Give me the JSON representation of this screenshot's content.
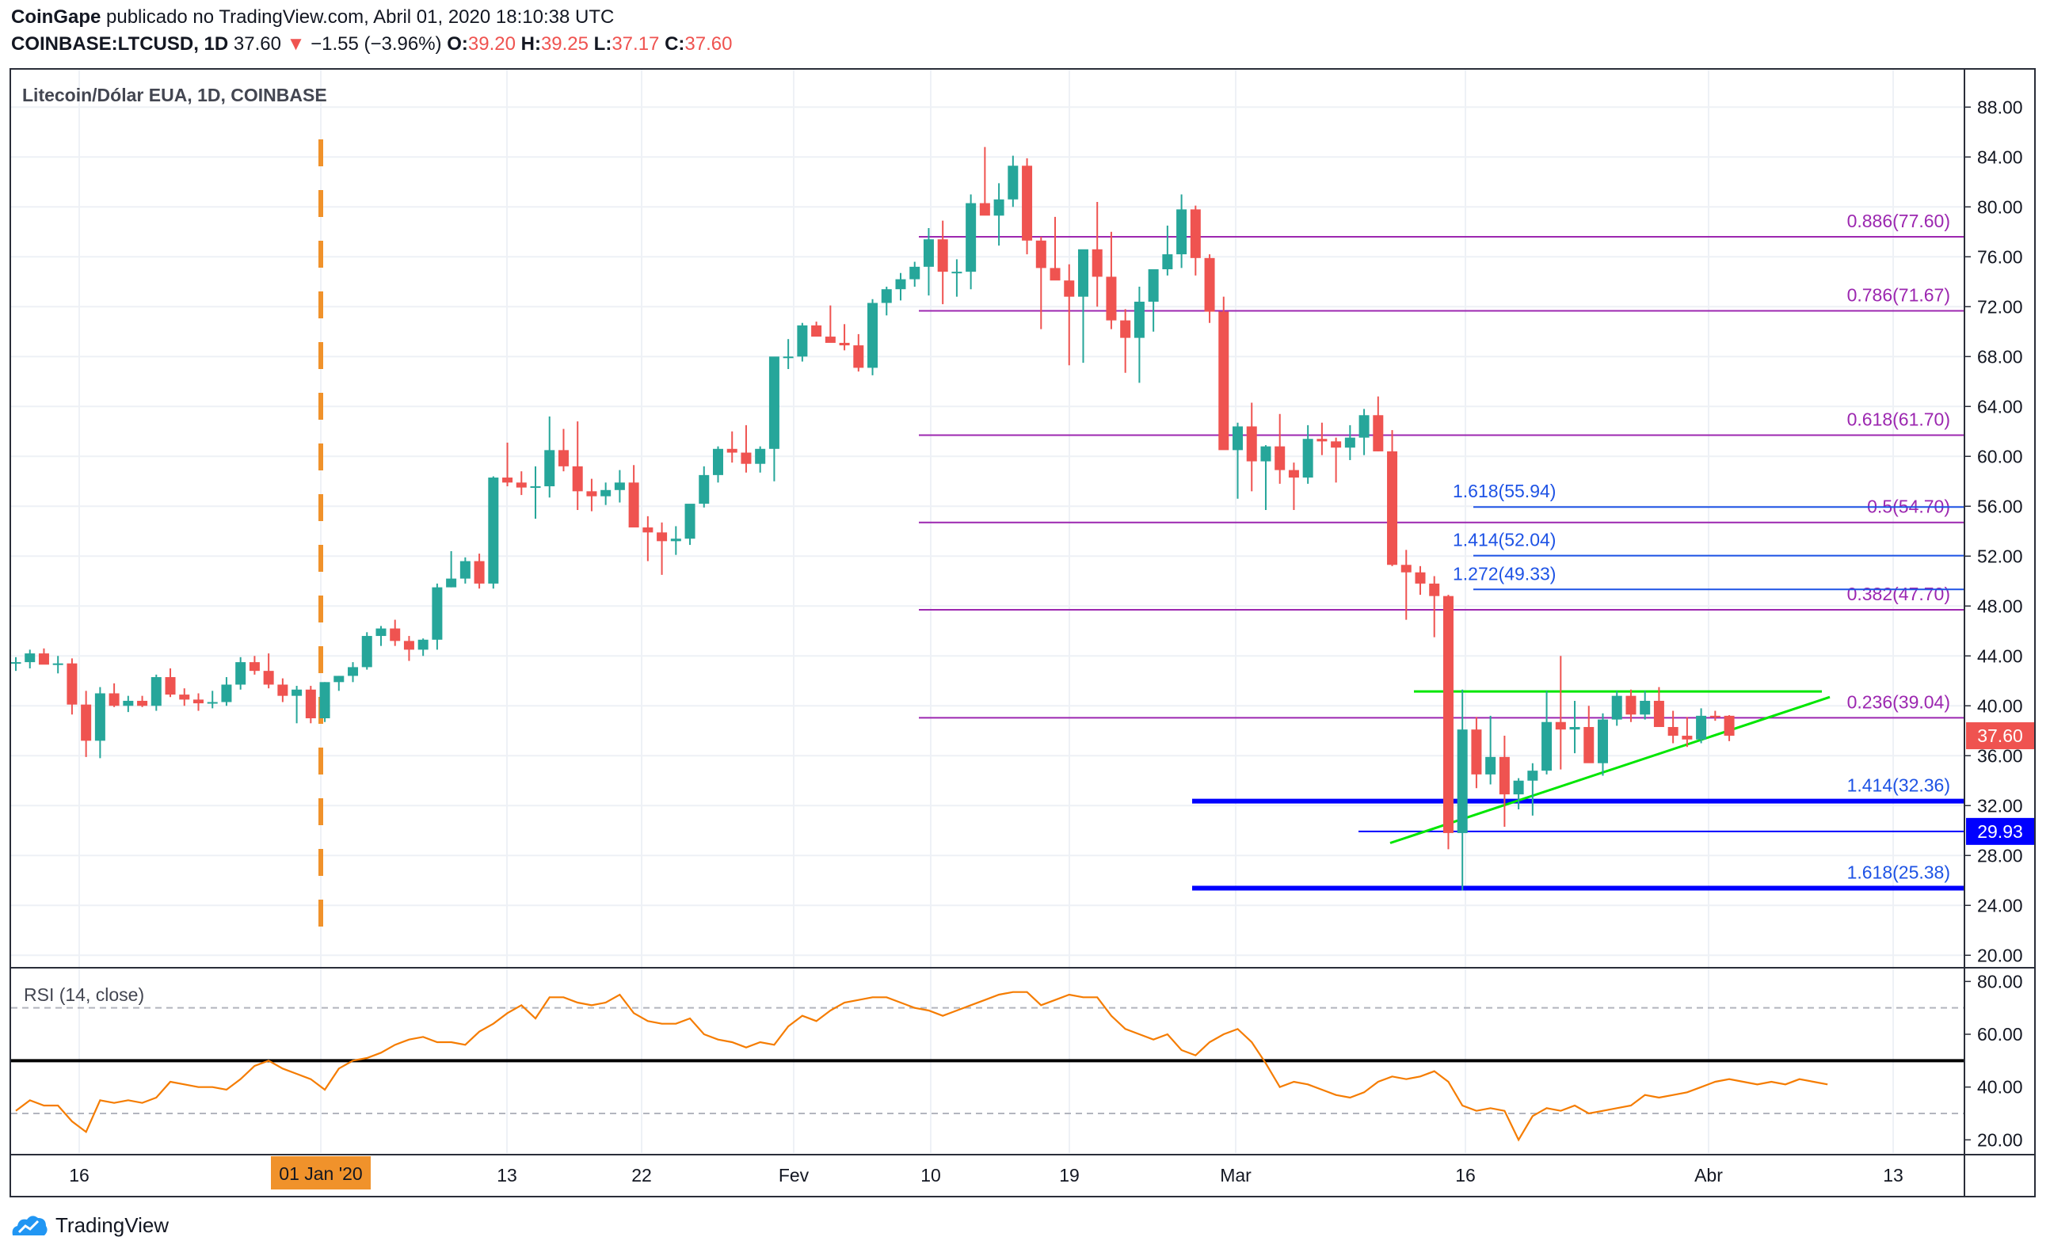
{
  "header": {
    "line1_brand": "CoinGape",
    "line1_rest": " publicado no TradingView.com, Abril 01, 2020 18:10:38 UTC",
    "symbol": "COINBASE:LTCUSD, 1D",
    "last": "37.60",
    "arrow": "▼",
    "change": "−1.55 (−3.96%)",
    "o_label": "O:",
    "o_val": "39.20",
    "h_label": "H:",
    "h_val": "39.25",
    "l_label": "L:",
    "l_val": "37.17",
    "c_label": "C:",
    "c_val": "37.60"
  },
  "footer": {
    "brand": "TradingView"
  },
  "colors": {
    "up": "#26a69a",
    "down": "#ef5350",
    "fib": "#9c27b0",
    "ext": "#1e53e5",
    "support": "#0000ff",
    "trend": "#00e600",
    "rsi": "#f57c00",
    "event": "#f0922b"
  },
  "chart_data": [
    {
      "type": "candlestick",
      "title": "Litecoin/Dólar EUA, 1D, COINBASE",
      "ylim": [
        19,
        91
      ],
      "y_ticks": [
        "88.00",
        "84.00",
        "80.00",
        "76.00",
        "72.00",
        "68.00",
        "64.00",
        "60.00",
        "56.00",
        "52.00",
        "48.00",
        "44.00",
        "40.00",
        "36.00",
        "32.00",
        "28.00",
        "24.00",
        "20.00"
      ],
      "x_ticks": [
        "16",
        "01 Jan '20",
        "13",
        "22",
        "Fev",
        "10",
        "19",
        "Mar",
        "16",
        "Abr",
        "13"
      ],
      "price_label": "37.60",
      "support_label": "29.93",
      "candles_ohlc": [
        [
          43.4,
          43.9,
          42.8,
          43.5
        ],
        [
          43.5,
          44.5,
          43,
          44.2
        ],
        [
          44.2,
          44.6,
          43.4,
          43.3
        ],
        [
          43.3,
          44,
          42.6,
          43.4
        ],
        [
          43.4,
          43.8,
          39.3,
          40.1
        ],
        [
          40.1,
          41.2,
          35.9,
          37.2
        ],
        [
          37.2,
          41.5,
          35.8,
          41
        ],
        [
          41,
          41.8,
          39.9,
          40
        ],
        [
          40,
          40.8,
          39.5,
          40.4
        ],
        [
          40.4,
          40.8,
          39.9,
          40
        ],
        [
          40,
          42.5,
          39.6,
          42.3
        ],
        [
          42.3,
          43,
          40.7,
          40.9
        ],
        [
          40.9,
          41.4,
          40,
          40.5
        ],
        [
          40.5,
          41,
          39.6,
          40.2
        ],
        [
          40.2,
          41.2,
          39.8,
          40.3
        ],
        [
          40.3,
          42.3,
          40,
          41.7
        ],
        [
          41.7,
          43.9,
          41.3,
          43.5
        ],
        [
          43.5,
          44,
          42.5,
          42.8
        ],
        [
          42.8,
          44.2,
          41.4,
          41.7
        ],
        [
          41.7,
          42.2,
          40.3,
          40.8
        ],
        [
          40.8,
          41.6,
          38.6,
          41.3
        ],
        [
          41.3,
          41.6,
          38.6,
          39
        ],
        [
          39,
          41.9,
          38.7,
          41.9
        ],
        [
          41.9,
          42.4,
          41.2,
          42.4
        ],
        [
          42.4,
          43.5,
          41.9,
          43.1
        ],
        [
          43.1,
          45.9,
          42.9,
          45.6
        ],
        [
          45.6,
          46.4,
          44.8,
          46.2
        ],
        [
          46.2,
          46.9,
          44.8,
          45.2
        ],
        [
          45.2,
          45.6,
          43.6,
          44.5
        ],
        [
          44.5,
          45.4,
          44,
          45.3
        ],
        [
          45.3,
          49.8,
          44.5,
          49.5
        ],
        [
          49.5,
          52.4,
          49.5,
          50.2
        ],
        [
          50.2,
          51.9,
          49.8,
          51.6
        ],
        [
          51.6,
          52.2,
          49.4,
          49.8
        ],
        [
          49.8,
          58.4,
          49.4,
          58.3
        ],
        [
          58.3,
          61.1,
          57.6,
          57.9
        ],
        [
          57.9,
          58.8,
          56.9,
          57.5
        ],
        [
          57.5,
          59.2,
          55,
          57.6
        ],
        [
          57.6,
          63.2,
          56.7,
          60.5
        ],
        [
          60.5,
          62.2,
          58.8,
          59.2
        ],
        [
          59.2,
          62.8,
          55.7,
          57.2
        ],
        [
          57.2,
          58.2,
          55.6,
          56.8
        ],
        [
          56.8,
          57.9,
          56.1,
          57.3
        ],
        [
          57.3,
          58.9,
          56.3,
          57.9
        ],
        [
          57.9,
          59.3,
          56.4,
          54.3
        ],
        [
          54.3,
          55.2,
          51.6,
          53.9
        ],
        [
          53.9,
          54.7,
          50.5,
          53.2
        ],
        [
          53.2,
          54.4,
          52.1,
          53.4
        ],
        [
          53.4,
          55.9,
          52.9,
          56.2
        ],
        [
          56.2,
          59.2,
          55.9,
          58.5
        ],
        [
          58.5,
          60.8,
          57.9,
          60.6
        ],
        [
          60.6,
          62,
          59.5,
          60.3
        ],
        [
          60.3,
          62.5,
          58.7,
          59.4
        ],
        [
          59.4,
          60.8,
          58.7,
          60.6
        ],
        [
          60.6,
          64,
          58,
          68
        ],
        [
          68,
          69.4,
          67,
          68
        ],
        [
          68,
          70.7,
          67.6,
          70.5
        ],
        [
          70.5,
          70.8,
          69.8,
          69.6
        ],
        [
          69.6,
          72.1,
          69.2,
          69.1
        ],
        [
          69.1,
          70.6,
          68.5,
          68.9
        ],
        [
          68.9,
          69.8,
          66.8,
          67.1
        ],
        [
          67.1,
          72.6,
          66.5,
          72.3
        ],
        [
          72.3,
          73.6,
          71.3,
          73.4
        ],
        [
          73.4,
          74.7,
          72.5,
          74.2
        ],
        [
          74.2,
          75.6,
          73.6,
          75.2
        ],
        [
          75.2,
          78.3,
          72.9,
          77.4
        ],
        [
          77.4,
          78.9,
          72.2,
          74.8
        ],
        [
          74.8,
          75.8,
          72.8,
          74.8
        ],
        [
          74.8,
          81,
          73.4,
          80.3
        ],
        [
          80.3,
          84.8,
          79.8,
          79.3
        ],
        [
          79.3,
          81.9,
          76.9,
          80.6
        ],
        [
          80.6,
          84.1,
          80,
          83.3
        ],
        [
          83.3,
          83.9,
          76.2,
          77.3
        ],
        [
          77.3,
          77.6,
          70.2,
          75.1
        ],
        [
          75.1,
          79.2,
          74.3,
          74.1
        ],
        [
          74.1,
          75.4,
          67.3,
          72.8
        ],
        [
          72.8,
          75.9,
          67.5,
          76.6
        ],
        [
          76.6,
          80.4,
          72,
          74.4
        ],
        [
          74.4,
          78,
          70.2,
          70.9
        ],
        [
          70.9,
          71.8,
          66.7,
          69.5
        ],
        [
          69.5,
          73.6,
          65.9,
          72.4
        ],
        [
          72.4,
          74.8,
          70,
          75
        ],
        [
          75,
          78.5,
          74.5,
          76.2
        ],
        [
          76.2,
          81,
          75.1,
          79.8
        ],
        [
          79.8,
          80.1,
          74.5,
          75.9
        ],
        [
          75.9,
          76.2,
          70.7,
          71.6
        ],
        [
          71.6,
          72.8,
          67.6,
          60.5
        ],
        [
          60.5,
          62.7,
          56.6,
          62.4
        ],
        [
          62.4,
          64.3,
          57.2,
          59.6
        ],
        [
          59.6,
          60.9,
          55.7,
          60.8
        ],
        [
          60.8,
          63.4,
          57.8,
          58.9
        ],
        [
          58.9,
          59.5,
          55.7,
          58.3
        ],
        [
          58.3,
          62.5,
          57.8,
          61.4
        ],
        [
          61.4,
          62.7,
          60.1,
          61.2
        ],
        [
          61.2,
          61.5,
          57.9,
          60.7
        ],
        [
          60.7,
          62.5,
          59.7,
          61.5
        ],
        [
          61.5,
          63.8,
          60.1,
          63.3
        ],
        [
          63.3,
          64.8,
          60.4,
          60.4
        ],
        [
          60.4,
          62.1,
          51.2,
          51.3
        ],
        [
          51.3,
          52.5,
          46.9,
          50.7
        ],
        [
          50.7,
          51.2,
          48.9,
          49.8
        ],
        [
          49.8,
          50.4,
          45.5,
          48.8
        ],
        [
          48.8,
          48.9,
          28.5,
          29.8
        ],
        [
          29.8,
          41.3,
          25.2,
          38.1
        ],
        [
          38.1,
          39.1,
          33.4,
          34.5
        ],
        [
          34.5,
          39.2,
          33.7,
          35.9
        ],
        [
          35.9,
          37.6,
          30.3,
          32.9
        ],
        [
          32.9,
          34.2,
          31.7,
          34
        ],
        [
          34,
          35.4,
          31.2,
          34.8
        ],
        [
          34.8,
          41.2,
          34.5,
          38.7
        ],
        [
          38.7,
          44,
          34.9,
          38.1
        ],
        [
          38.1,
          40.4,
          36.2,
          38.3
        ],
        [
          38.3,
          40,
          35.8,
          35.4
        ],
        [
          35.4,
          39.4,
          34.4,
          38.9
        ],
        [
          38.9,
          41.2,
          38.4,
          40.8
        ],
        [
          40.8,
          41.3,
          38.7,
          39.3
        ],
        [
          39.3,
          41.2,
          38.9,
          40.4
        ],
        [
          40.4,
          41.5,
          38.5,
          38.3
        ],
        [
          38.3,
          39.6,
          37,
          37.6
        ],
        [
          37.6,
          39.1,
          36.7,
          37.3
        ],
        [
          37.3,
          39.8,
          37,
          39.2
        ],
        [
          39.2,
          39.6,
          38.8,
          39.15
        ],
        [
          39.2,
          39.25,
          37.17,
          37.6
        ]
      ],
      "annotations": [
        {
          "label": "0.886(77.60)",
          "y": 77.6,
          "kind": "fib"
        },
        {
          "label": "0.786(71.67)",
          "y": 71.67,
          "kind": "fib"
        },
        {
          "label": "0.618(61.70)",
          "y": 61.7,
          "kind": "fib"
        },
        {
          "label": "0.5(54.70)",
          "y": 54.7,
          "kind": "fib"
        },
        {
          "label": "0.382(47.70)",
          "y": 47.7,
          "kind": "fib"
        },
        {
          "label": "0.236(39.04)",
          "y": 39.04,
          "kind": "fib"
        },
        {
          "label": "1.618(55.94)",
          "y": 55.94,
          "kind": "ext"
        },
        {
          "label": "1.414(52.04)",
          "y": 52.04,
          "kind": "ext"
        },
        {
          "label": "1.272(49.33)",
          "y": 49.33,
          "kind": "ext"
        },
        {
          "label": "1.414(32.36)",
          "y": 32.36,
          "kind": "support"
        },
        {
          "label": "1.618(25.38)",
          "y": 25.38,
          "kind": "support"
        }
      ]
    },
    {
      "type": "line",
      "title": "RSI (14, close)",
      "ylim": [
        15,
        84
      ],
      "y_ticks": [
        "80.00",
        "60.00",
        "40.00",
        "20.00"
      ],
      "reference_lines": [
        70,
        50,
        30
      ],
      "values": [
        31,
        35,
        33,
        33,
        27,
        23,
        35,
        34,
        35,
        34,
        36,
        42,
        41,
        40,
        40,
        39,
        43,
        48,
        50,
        47,
        45,
        43,
        39,
        47,
        50,
        51,
        53,
        56,
        58,
        59,
        57,
        57,
        56,
        61,
        64,
        68,
        71,
        66,
        74,
        74,
        72,
        71,
        72,
        75,
        68,
        65,
        64,
        64,
        66,
        60,
        58,
        57,
        55,
        57,
        56,
        63,
        67,
        65,
        69,
        72,
        73,
        74,
        74,
        72,
        70,
        69,
        67,
        69,
        71,
        73,
        75,
        76,
        76,
        71,
        73,
        75,
        74,
        74,
        67,
        62,
        60,
        58,
        60,
        54,
        52,
        57,
        60,
        62,
        57,
        49,
        40,
        42,
        41,
        39,
        37,
        36,
        38,
        42,
        44,
        43,
        44,
        46,
        42,
        33,
        31,
        32,
        31,
        20,
        29,
        32,
        31,
        33,
        30,
        31,
        32,
        33,
        37,
        36,
        37,
        38,
        40,
        42,
        43,
        42,
        41,
        42,
        41,
        43,
        42,
        41
      ]
    }
  ]
}
